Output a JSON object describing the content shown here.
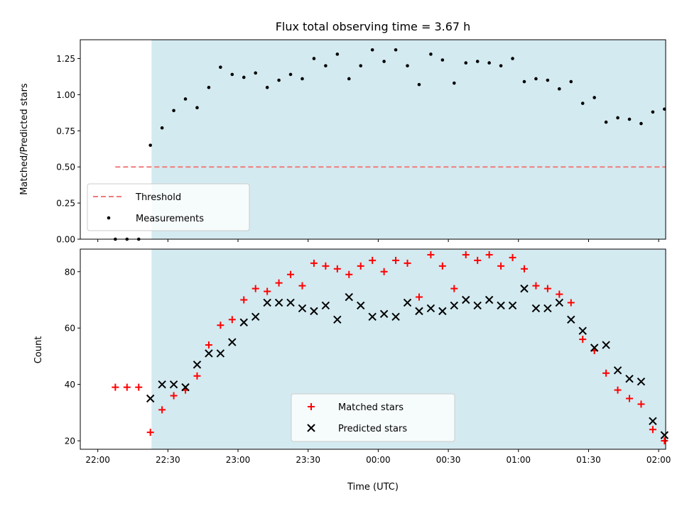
{
  "chart_data": [
    {
      "type": "scatter",
      "title": "Flux total observing time = 3.67 h",
      "xlabel": "",
      "ylabel": "Matched/Predicted stars",
      "xlim": [
        -7.5,
        243
      ],
      "ylim": [
        0,
        1.38
      ],
      "yticks": [
        0.0,
        0.25,
        0.5,
        0.75,
        1.0,
        1.25
      ],
      "ytick_labels": [
        "0.00",
        "0.25",
        "0.50",
        "0.75",
        "1.00",
        "1.25"
      ],
      "xticks": [
        0,
        30,
        60,
        90,
        120,
        150,
        180,
        210,
        240
      ],
      "shaded_span": [
        23,
        243
      ],
      "colors": {
        "span": "#d3eaf0",
        "threshold": "#f07b7b",
        "points": "#000000"
      },
      "threshold": {
        "name": "Threshold",
        "y": 0.5,
        "x_range": [
          7.5,
          243
        ]
      },
      "series": [
        {
          "name": "Measurements",
          "marker": "dot",
          "x": [
            7.5,
            12.5,
            17.5,
            22.5,
            27.5,
            32.5,
            37.5,
            42.5,
            47.5,
            52.5,
            57.5,
            62.5,
            67.5,
            72.5,
            77.5,
            82.5,
            87.5,
            92.5,
            97.5,
            102.5,
            107.5,
            112.5,
            117.5,
            122.5,
            127.5,
            132.5,
            137.5,
            142.5,
            147.5,
            152.5,
            157.5,
            162.5,
            167.5,
            172.5,
            177.5,
            182.5,
            187.5,
            192.5,
            197.5,
            202.5,
            207.5,
            212.5,
            217.5,
            222.5,
            227.5,
            232.5,
            237.5,
            242.5
          ],
          "y": [
            0.0,
            0.0,
            0.0,
            0.65,
            0.77,
            0.89,
            0.97,
            0.91,
            1.05,
            1.19,
            1.14,
            1.12,
            1.15,
            1.05,
            1.1,
            1.14,
            1.11,
            1.25,
            1.2,
            1.28,
            1.11,
            1.2,
            1.31,
            1.23,
            1.31,
            1.2,
            1.07,
            1.28,
            1.24,
            1.08,
            1.22,
            1.23,
            1.22,
            1.2,
            1.25,
            1.09,
            1.11,
            1.1,
            1.04,
            1.09,
            0.94,
            0.98,
            0.81,
            0.84,
            0.83,
            0.8,
            0.88,
            0.9
          ]
        }
      ],
      "legend": {
        "position": "lower-left",
        "entries": [
          "Threshold",
          "Measurements"
        ]
      }
    },
    {
      "type": "scatter",
      "title": "",
      "xlabel": "Time (UTC)",
      "ylabel": "Count",
      "xlim": [
        -7.5,
        243
      ],
      "ylim": [
        17,
        88
      ],
      "yticks": [
        20,
        40,
        60,
        80
      ],
      "ytick_labels": [
        "20",
        "40",
        "60",
        "80"
      ],
      "xticks": [
        0,
        30,
        60,
        90,
        120,
        150,
        180,
        210,
        240
      ],
      "xtick_labels": [
        "22:00",
        "22:30",
        "23:00",
        "23:30",
        "00:00",
        "00:30",
        "01:00",
        "01:30",
        "02:00"
      ],
      "shaded_span": [
        23,
        243
      ],
      "colors": {
        "span": "#d3eaf0",
        "matched": "#ff0000",
        "predicted": "#000000"
      },
      "series": [
        {
          "name": "Matched stars",
          "marker": "plus",
          "x": [
            7.5,
            12.5,
            17.5,
            22.5,
            27.5,
            32.5,
            37.5,
            42.5,
            47.5,
            52.5,
            57.5,
            62.5,
            67.5,
            72.5,
            77.5,
            82.5,
            87.5,
            92.5,
            97.5,
            102.5,
            107.5,
            112.5,
            117.5,
            122.5,
            127.5,
            132.5,
            137.5,
            142.5,
            147.5,
            152.5,
            157.5,
            162.5,
            167.5,
            172.5,
            177.5,
            182.5,
            187.5,
            192.5,
            197.5,
            202.5,
            207.5,
            212.5,
            217.5,
            222.5,
            227.5,
            232.5,
            237.5,
            242.5
          ],
          "y": [
            39,
            39,
            39,
            23,
            31,
            36,
            38,
            43,
            54,
            61,
            63,
            70,
            74,
            73,
            76,
            79,
            75,
            83,
            82,
            81,
            79,
            82,
            84,
            80,
            84,
            83,
            71,
            86,
            82,
            74,
            86,
            84,
            86,
            82,
            85,
            81,
            75,
            74,
            72,
            69,
            56,
            52,
            44,
            38,
            35,
            33,
            24,
            20
          ]
        },
        {
          "name": "Predicted stars",
          "marker": "x",
          "x": [
            22.5,
            27.5,
            32.5,
            37.5,
            42.5,
            47.5,
            52.5,
            57.5,
            62.5,
            67.5,
            72.5,
            77.5,
            82.5,
            87.5,
            92.5,
            97.5,
            102.5,
            107.5,
            112.5,
            117.5,
            122.5,
            127.5,
            132.5,
            137.5,
            142.5,
            147.5,
            152.5,
            157.5,
            162.5,
            167.5,
            172.5,
            177.5,
            182.5,
            187.5,
            192.5,
            197.5,
            202.5,
            207.5,
            212.5,
            217.5,
            222.5,
            227.5,
            232.5,
            237.5,
            242.5
          ],
          "y": [
            35,
            40,
            40,
            39,
            47,
            51,
            51,
            55,
            62,
            64,
            69,
            69,
            69,
            67,
            66,
            68,
            63,
            71,
            68,
            64,
            65,
            64,
            69,
            66,
            67,
            66,
            68,
            70,
            68,
            70,
            68,
            68,
            74,
            67,
            67,
            69,
            63,
            59,
            53,
            54,
            45,
            42,
            41,
            27,
            22
          ]
        }
      ],
      "legend": {
        "position": "lower-center",
        "entries": [
          "Matched stars",
          "Predicted stars"
        ]
      }
    }
  ]
}
